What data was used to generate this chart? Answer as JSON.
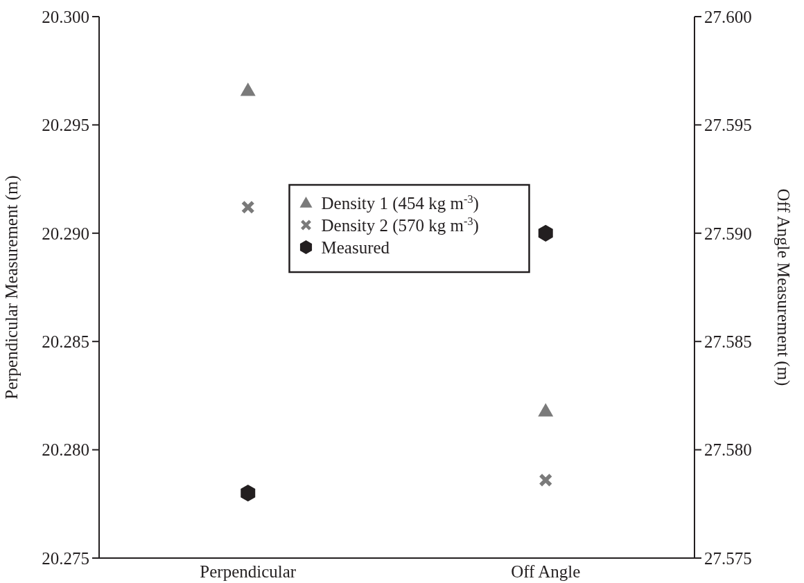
{
  "chart_data": {
    "type": "scatter",
    "categories": [
      "Perpendicular",
      "Off Angle"
    ],
    "ylabel": "Perpendicular Measurement (m)",
    "y2label": "Off Angle Measurement (m)",
    "ylim": [
      20.275,
      20.3
    ],
    "yticks": [
      {
        "value": 20.275,
        "label": "20.275"
      },
      {
        "value": 20.28,
        "label": "20.280"
      },
      {
        "value": 20.285,
        "label": "20.285"
      },
      {
        "value": 20.29,
        "label": "20.290"
      },
      {
        "value": 20.295,
        "label": "20.295"
      },
      {
        "value": 20.3,
        "label": "20.300"
      }
    ],
    "y2lim": [
      27.575,
      27.6
    ],
    "y2ticks": [
      {
        "value": 27.575,
        "label": "27.575"
      },
      {
        "value": 27.58,
        "label": "27.580"
      },
      {
        "value": 27.585,
        "label": "27.585"
      },
      {
        "value": 27.59,
        "label": "27.590"
      },
      {
        "value": 27.595,
        "label": "27.595"
      },
      {
        "value": 27.6,
        "label": "27.600"
      }
    ],
    "series": [
      {
        "name": "Density 1 (454 kg m$^{-3}$)",
        "color": "#7a7a7a",
        "marker": "triangle",
        "values": [
          20.2966,
          null
        ]
      },
      {
        "name": "Density 2 (570 kg m$^{-3}$)",
        "color": "#7a7a7a",
        "marker": "cross",
        "values": [
          20.2912,
          null
        ]
      },
      {
        "name": "Measured",
        "color": "#231f20",
        "values": [
          20.278,
          null
        ]
      },
      {
        "color": "#7a7a7a",
        "marker": "triangle",
        "axis": "y2",
        "values": [
          null,
          27.5818
        ]
      },
      {
        "color": "#7a7a7a",
        "marker": "cross",
        "axis": "y2",
        "values": [
          null,
          27.5786
        ]
      },
      {
        "color": "#231f20",
        "axis": "y2",
        "values": [
          null,
          27.59
        ]
      }
    ],
    "legend": "center",
    "grid": false
  }
}
